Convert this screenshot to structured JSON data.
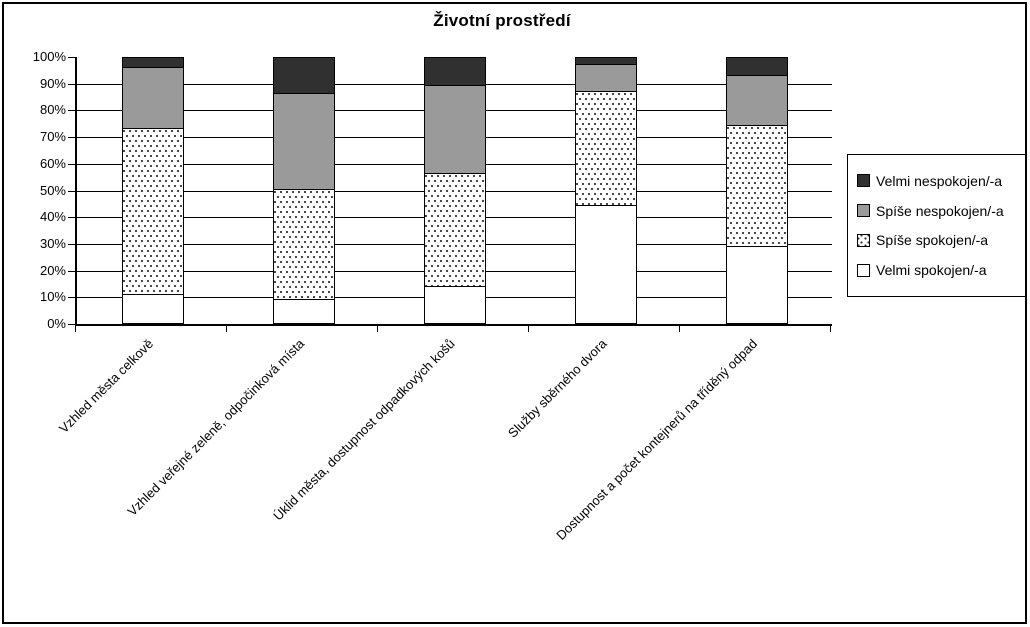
{
  "title": "Životní prostředí",
  "chart_data": {
    "type": "bar",
    "subtype": "stacked-100",
    "title": "Životní prostředí",
    "categories": [
      "Vzhled města celkově",
      "Vzhled veřejné zeleně, odpočinková místa",
      "Úklid města, dostupnost odpadkových košů",
      "Služby sběrného dvora",
      "Dostupnost a počet kontejnerů na tříděný odpad"
    ],
    "series": [
      {
        "name": "Velmi spokojen/-a",
        "fill": "solid",
        "color": "#ffffff",
        "values": [
          11,
          9,
          14,
          44,
          29
        ]
      },
      {
        "name": "Spíše spokojen/-a",
        "fill": "dots",
        "color": "#ffffff",
        "values": [
          62,
          41,
          42,
          43,
          45
        ]
      },
      {
        "name": "Spíše nespokojen/-a",
        "fill": "solid",
        "color": "#9a9a9a",
        "values": [
          23,
          36,
          33,
          10,
          19
        ]
      },
      {
        "name": "Velmi nespokojen/-a",
        "fill": "solid",
        "color": "#303030",
        "values": [
          4,
          14,
          11,
          3,
          7
        ]
      }
    ],
    "y_tick_labels": [
      "0%",
      "10%",
      "20%",
      "30%",
      "40%",
      "50%",
      "60%",
      "70%",
      "80%",
      "90%",
      "100%"
    ],
    "ylim": [
      0,
      100
    ],
    "grid": "horizontal",
    "legend_position": "right",
    "legend_order_top_to_bottom": [
      "Velmi nespokojen/-a",
      "Spíše nespokojen/-a",
      "Spíše spokojen/-a",
      "Velmi spokojen/-a"
    ]
  },
  "colors": {
    "very_dissatisfied": "#303030",
    "rather_dissatisfied": "#9a9a9a",
    "rather_satisfied_dots": "#333333",
    "very_satisfied": "#ffffff",
    "axis": "#000000",
    "background": "#ffffff"
  }
}
